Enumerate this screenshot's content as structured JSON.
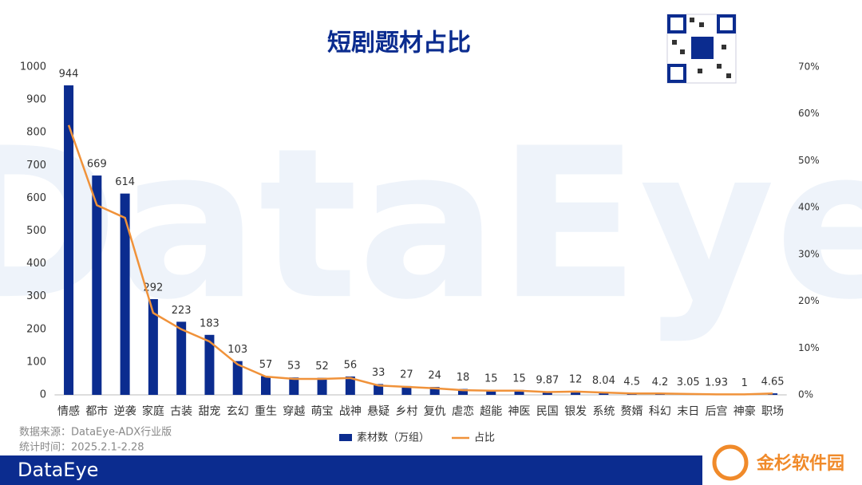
{
  "chart_data": {
    "type": "bar",
    "title": "短剧题材占比",
    "categories": [
      "情感",
      "都市",
      "逆袭",
      "家庭",
      "古装",
      "甜宠",
      "玄幻",
      "重生",
      "穿越",
      "萌宝",
      "战神",
      "悬疑",
      "乡村",
      "复仇",
      "虐恋",
      "超能",
      "神医",
      "民国",
      "银发",
      "系统",
      "赘婿",
      "科幻",
      "末日",
      "后宫",
      "神豪",
      "职场"
    ],
    "series": [
      {
        "name": "素材数（万组）",
        "color": "#0b2c8f",
        "values": [
          944,
          669,
          614,
          292,
          223,
          183,
          103,
          57,
          53,
          52,
          56,
          33,
          27,
          24,
          18,
          15,
          15,
          9.87,
          12,
          8.04,
          4.5,
          4.2,
          3.05,
          1.93,
          1,
          4.65
        ]
      },
      {
        "name": "占比",
        "color": "#f0923a",
        "type": "line",
        "axis": "y2",
        "values": [
          57.6,
          40.5,
          37.8,
          17.5,
          14.0,
          11.4,
          6.5,
          3.9,
          3.4,
          3.4,
          3.6,
          2.0,
          1.7,
          1.4,
          1.0,
          0.9,
          0.9,
          0.6,
          0.7,
          0.5,
          0.3,
          0.3,
          0.2,
          0.1,
          0.1,
          0.3
        ]
      }
    ],
    "ylim": [
      0,
      1000
    ],
    "yticks": [
      0,
      100,
      200,
      300,
      400,
      500,
      600,
      700,
      800,
      900,
      1000
    ],
    "y2lim": [
      0,
      70
    ],
    "y2ticks": [
      {
        "value": 0,
        "label": "0%"
      },
      {
        "value": 10,
        "label": "10%"
      },
      {
        "value": 20,
        "label": "20%"
      },
      {
        "value": 30,
        "label": "30%"
      },
      {
        "value": 40,
        "label": "40%"
      },
      {
        "value": 50,
        "label": "50%"
      },
      {
        "value": 60,
        "label": "60%"
      },
      {
        "value": 70,
        "label": "70%"
      }
    ],
    "grid": false
  },
  "footer": {
    "source": "数据来源：DataEye-ADX行业版",
    "period": "统计时间：2025.2.1-2.28"
  },
  "brand": "DataEye",
  "watermark": "DataEye",
  "site": "金杉软件园"
}
